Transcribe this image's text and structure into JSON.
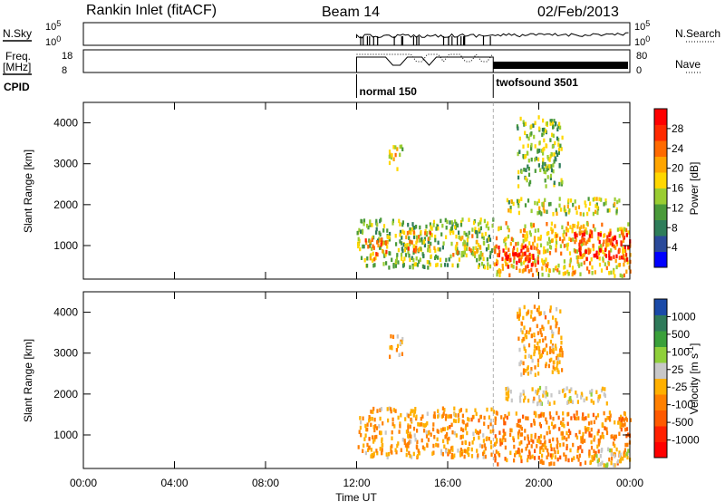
{
  "header": {
    "station": "Rankin Inlet (fitACF)",
    "beam": "Beam 14",
    "date": "02/Feb/2013"
  },
  "top_panels": {
    "nsky_label": "N.Sky",
    "nsky_ticks": [
      "10^5",
      "10^0"
    ],
    "nsearch_label": "N.Search",
    "nsearch_ticks": [
      "10^5",
      "10^0"
    ],
    "freq_label": "Freq.",
    "freq_unit": "[MHz]",
    "freq_ticks": [
      "18",
      "8"
    ],
    "nave_label": "Nave",
    "nave_ticks": [
      "80",
      "0"
    ],
    "cpid_label": "CPID",
    "cpid_segments": [
      {
        "name": "normal 150",
        "start_hour": 12.0
      },
      {
        "name": "twofsound 3501",
        "start_hour": 18.0
      }
    ]
  },
  "x_axis": {
    "title": "Time UT",
    "ticks": [
      "00:00",
      "04:00",
      "08:00",
      "12:00",
      "16:00",
      "20:00",
      "00:00"
    ],
    "range_hours": [
      0,
      24
    ]
  },
  "power_colorbar": {
    "label": "Power [dB]",
    "ticks": [
      "28",
      "24",
      "20",
      "16",
      "12",
      "8",
      "4"
    ],
    "colors": [
      "#0000ff",
      "#2a4a9a",
      "#2e7d5a",
      "#4a9a3a",
      "#9acd32",
      "#ffd700",
      "#ffa500",
      "#ff6a00",
      "#ff2a00",
      "#ff0000"
    ]
  },
  "velocity_colorbar": {
    "label": "Velocity [m s^-1]",
    "ticks": [
      "1000",
      "500",
      "100",
      "25",
      "-25",
      "-100",
      "-500",
      "-1000"
    ],
    "colors": [
      "#1a4aa8",
      "#2f7a5a",
      "#3aa03a",
      "#8fd03a",
      "#c8c8c8",
      "#ffb000",
      "#ff8000",
      "#ff5a00",
      "#ff2000",
      "#ff0000"
    ]
  },
  "chart_data": [
    {
      "type": "heatmap",
      "title": "Power",
      "xlabel": "Time UT",
      "ylabel": "Slant Range [km]",
      "xlim": [
        0,
        24
      ],
      "ylim": [
        180,
        4500
      ],
      "yticks": [
        "4000",
        "3000",
        "2000",
        "1000"
      ],
      "colorbar_label": "Power [dB]",
      "colorbar_range": [
        0,
        30
      ],
      "regions": [
        {
          "t0": 12.0,
          "t1": 18.0,
          "r0": 500,
          "r1": 1700,
          "level": 12
        },
        {
          "t0": 12.3,
          "t1": 13.4,
          "r0": 700,
          "r1": 1200,
          "level": 22
        },
        {
          "t0": 14.0,
          "t1": 15.4,
          "r0": 900,
          "r1": 1400,
          "level": 20
        },
        {
          "t0": 16.2,
          "t1": 17.6,
          "r0": 800,
          "r1": 1300,
          "level": 18
        },
        {
          "t0": 13.4,
          "t1": 14.0,
          "r0": 2900,
          "r1": 3500,
          "level": 16
        },
        {
          "t0": 18.0,
          "t1": 24.0,
          "r0": 300,
          "r1": 1600,
          "level": 18
        },
        {
          "t0": 18.0,
          "t1": 20.0,
          "r0": 500,
          "r1": 1100,
          "level": 27
        },
        {
          "t0": 21.5,
          "t1": 24.0,
          "r0": 700,
          "r1": 1400,
          "level": 28
        },
        {
          "t0": 18.5,
          "t1": 23.5,
          "r0": 1800,
          "r1": 2200,
          "level": 14
        },
        {
          "t0": 19.0,
          "t1": 21.0,
          "r0": 2500,
          "r1": 4200,
          "level": 12
        }
      ]
    },
    {
      "type": "heatmap",
      "title": "Velocity",
      "xlabel": "Time UT",
      "ylabel": "Slant Range [km]",
      "xlim": [
        0,
        24
      ],
      "ylim": [
        180,
        4500
      ],
      "yticks": [
        "4000",
        "3000",
        "2000",
        "1000"
      ],
      "colorbar_label": "Velocity [m s^-1]",
      "colorbar_range": [
        -1000,
        1000
      ],
      "regions": [
        {
          "t0": 12.0,
          "t1": 18.0,
          "r0": 500,
          "r1": 1700,
          "velocity": -200
        },
        {
          "t0": 13.4,
          "t1": 14.0,
          "r0": 2900,
          "r1": 3500,
          "velocity": -150
        },
        {
          "t0": 18.0,
          "t1": 24.0,
          "r0": 300,
          "r1": 1600,
          "velocity": -300
        },
        {
          "t0": 18.5,
          "t1": 23.0,
          "r0": 1800,
          "r1": 2200,
          "velocity": 0
        },
        {
          "t0": 22.5,
          "t1": 24.0,
          "r0": 300,
          "r1": 700,
          "velocity": 150
        },
        {
          "t0": 19.0,
          "t1": 21.0,
          "r0": 2500,
          "r1": 4200,
          "velocity": -200
        }
      ]
    }
  ]
}
